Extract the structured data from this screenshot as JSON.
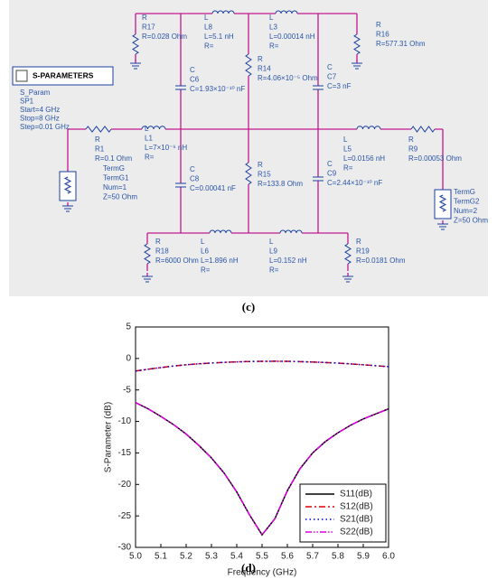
{
  "schematic": {
    "sparam": {
      "title": "S-PARAMETERS",
      "lines": [
        "S_Param",
        "SP1",
        "Start=4 GHz",
        "Stop=8 GHz",
        "Step=0.01 GHz"
      ]
    },
    "components": [
      {
        "lines": [
          "R",
          "R17",
          "R=0.028 Ohm"
        ]
      },
      {
        "lines": [
          "L",
          "L8",
          "L=5.1 nH",
          "R="
        ]
      },
      {
        "lines": [
          "L",
          "L3",
          "L=0.00014 nH",
          "R="
        ]
      },
      {
        "lines": [
          "R",
          "R16",
          "R=577.31 Ohm"
        ]
      },
      {
        "lines": [
          "C",
          "C6",
          "C=1.93×10⁻¹⁰ nF"
        ]
      },
      {
        "lines": [
          "R",
          "R14",
          "R=4.06×10⁻⁵ Ohm"
        ]
      },
      {
        "lines": [
          "C",
          "C7",
          "C=3 nF"
        ]
      },
      {
        "lines": [
          "R",
          "R1",
          "R=0.1 Ohm"
        ]
      },
      {
        "lines": [
          "L",
          "L1",
          "L=7×10⁻⁶ nH",
          "R="
        ]
      },
      {
        "lines": [
          "L",
          "L5",
          "L=0.0156 nH",
          "R="
        ]
      },
      {
        "lines": [
          "R",
          "R9",
          "R=0.00053 Ohm"
        ]
      },
      {
        "lines": [
          "TermG",
          "TermG1",
          "Num=1",
          "Z=50 Ohm"
        ]
      },
      {
        "lines": [
          "TermG",
          "TermG2",
          "Num=2",
          "Z=50 Ohm"
        ]
      },
      {
        "lines": [
          "C",
          "C8",
          "C=0.00041 nF"
        ]
      },
      {
        "lines": [
          "R",
          "R15",
          "R=133.8 Ohm"
        ]
      },
      {
        "lines": [
          "C",
          "C9",
          "C=2.44×10⁻¹⁰ nF"
        ]
      },
      {
        "lines": [
          "R",
          "R18",
          "R=6000 Ohm"
        ]
      },
      {
        "lines": [
          "L",
          "L6",
          "L=1.896 nH",
          "R="
        ]
      },
      {
        "lines": [
          "L",
          "L9",
          "L=0.152 nH",
          "R="
        ]
      },
      {
        "lines": [
          "R",
          "R19",
          "R=0.0181 Ohm"
        ]
      }
    ]
  },
  "captions": [
    "(c)",
    "(d)"
  ],
  "chart_data": {
    "type": "line",
    "xlabel": "Frequency (GHz)",
    "ylabel": "S-Parameter (dB)",
    "x": [
      5.0,
      5.05,
      5.1,
      5.15,
      5.2,
      5.25,
      5.3,
      5.35,
      5.4,
      5.45,
      5.5,
      5.55,
      5.6,
      5.65,
      5.7,
      5.75,
      5.8,
      5.85,
      5.9,
      5.95,
      6.0
    ],
    "series": [
      {
        "name": "S11(dB)",
        "color": "#000000",
        "dash": "solid",
        "values": [
          -7.0,
          -8.0,
          -9.2,
          -10.5,
          -12.0,
          -13.8,
          -15.8,
          -18.2,
          -21.2,
          -24.8,
          -28.0,
          -25.5,
          -21.0,
          -17.5,
          -15.0,
          -13.2,
          -11.8,
          -10.6,
          -9.6,
          -8.8,
          -8.0
        ]
      },
      {
        "name": "S12(dB)",
        "color": "#e00000",
        "dash": "dashdot",
        "values": [
          -2.0,
          -1.7,
          -1.45,
          -1.2,
          -1.0,
          -0.85,
          -0.72,
          -0.62,
          -0.54,
          -0.48,
          -0.45,
          -0.44,
          -0.45,
          -0.5,
          -0.56,
          -0.64,
          -0.74,
          -0.86,
          -1.0,
          -1.15,
          -1.3
        ]
      },
      {
        "name": "S21(dB)",
        "color": "#0000e0",
        "dash": "dot",
        "values": [
          -2.0,
          -1.7,
          -1.45,
          -1.2,
          -1.0,
          -0.85,
          -0.72,
          -0.62,
          -0.54,
          -0.48,
          -0.45,
          -0.44,
          -0.45,
          -0.5,
          -0.56,
          -0.64,
          -0.74,
          -0.86,
          -1.0,
          -1.15,
          -1.3
        ]
      },
      {
        "name": "S22(dB)",
        "color": "#e000e0",
        "dash": "dashdotdot",
        "values": [
          -7.0,
          -8.0,
          -9.2,
          -10.5,
          -12.0,
          -13.8,
          -15.8,
          -18.2,
          -21.2,
          -24.8,
          -28.0,
          -25.5,
          -21.0,
          -17.5,
          -15.0,
          -13.2,
          -11.8,
          -10.6,
          -9.6,
          -8.8,
          -8.0
        ]
      }
    ],
    "xlim": [
      5.0,
      6.0
    ],
    "xticks": [
      {
        "value": 5.0,
        "label": "5.0"
      },
      5.1,
      5.2,
      5.3,
      5.4,
      5.5,
      5.6,
      5.7,
      5.8,
      5.9,
      {
        "value": 6.0,
        "label": "6.0"
      }
    ],
    "ylim": [
      -30,
      5
    ],
    "yticks": [
      5,
      0,
      -5,
      -10,
      -15,
      -20,
      -25,
      -30
    ],
    "grid": false,
    "legend": "lower right"
  }
}
